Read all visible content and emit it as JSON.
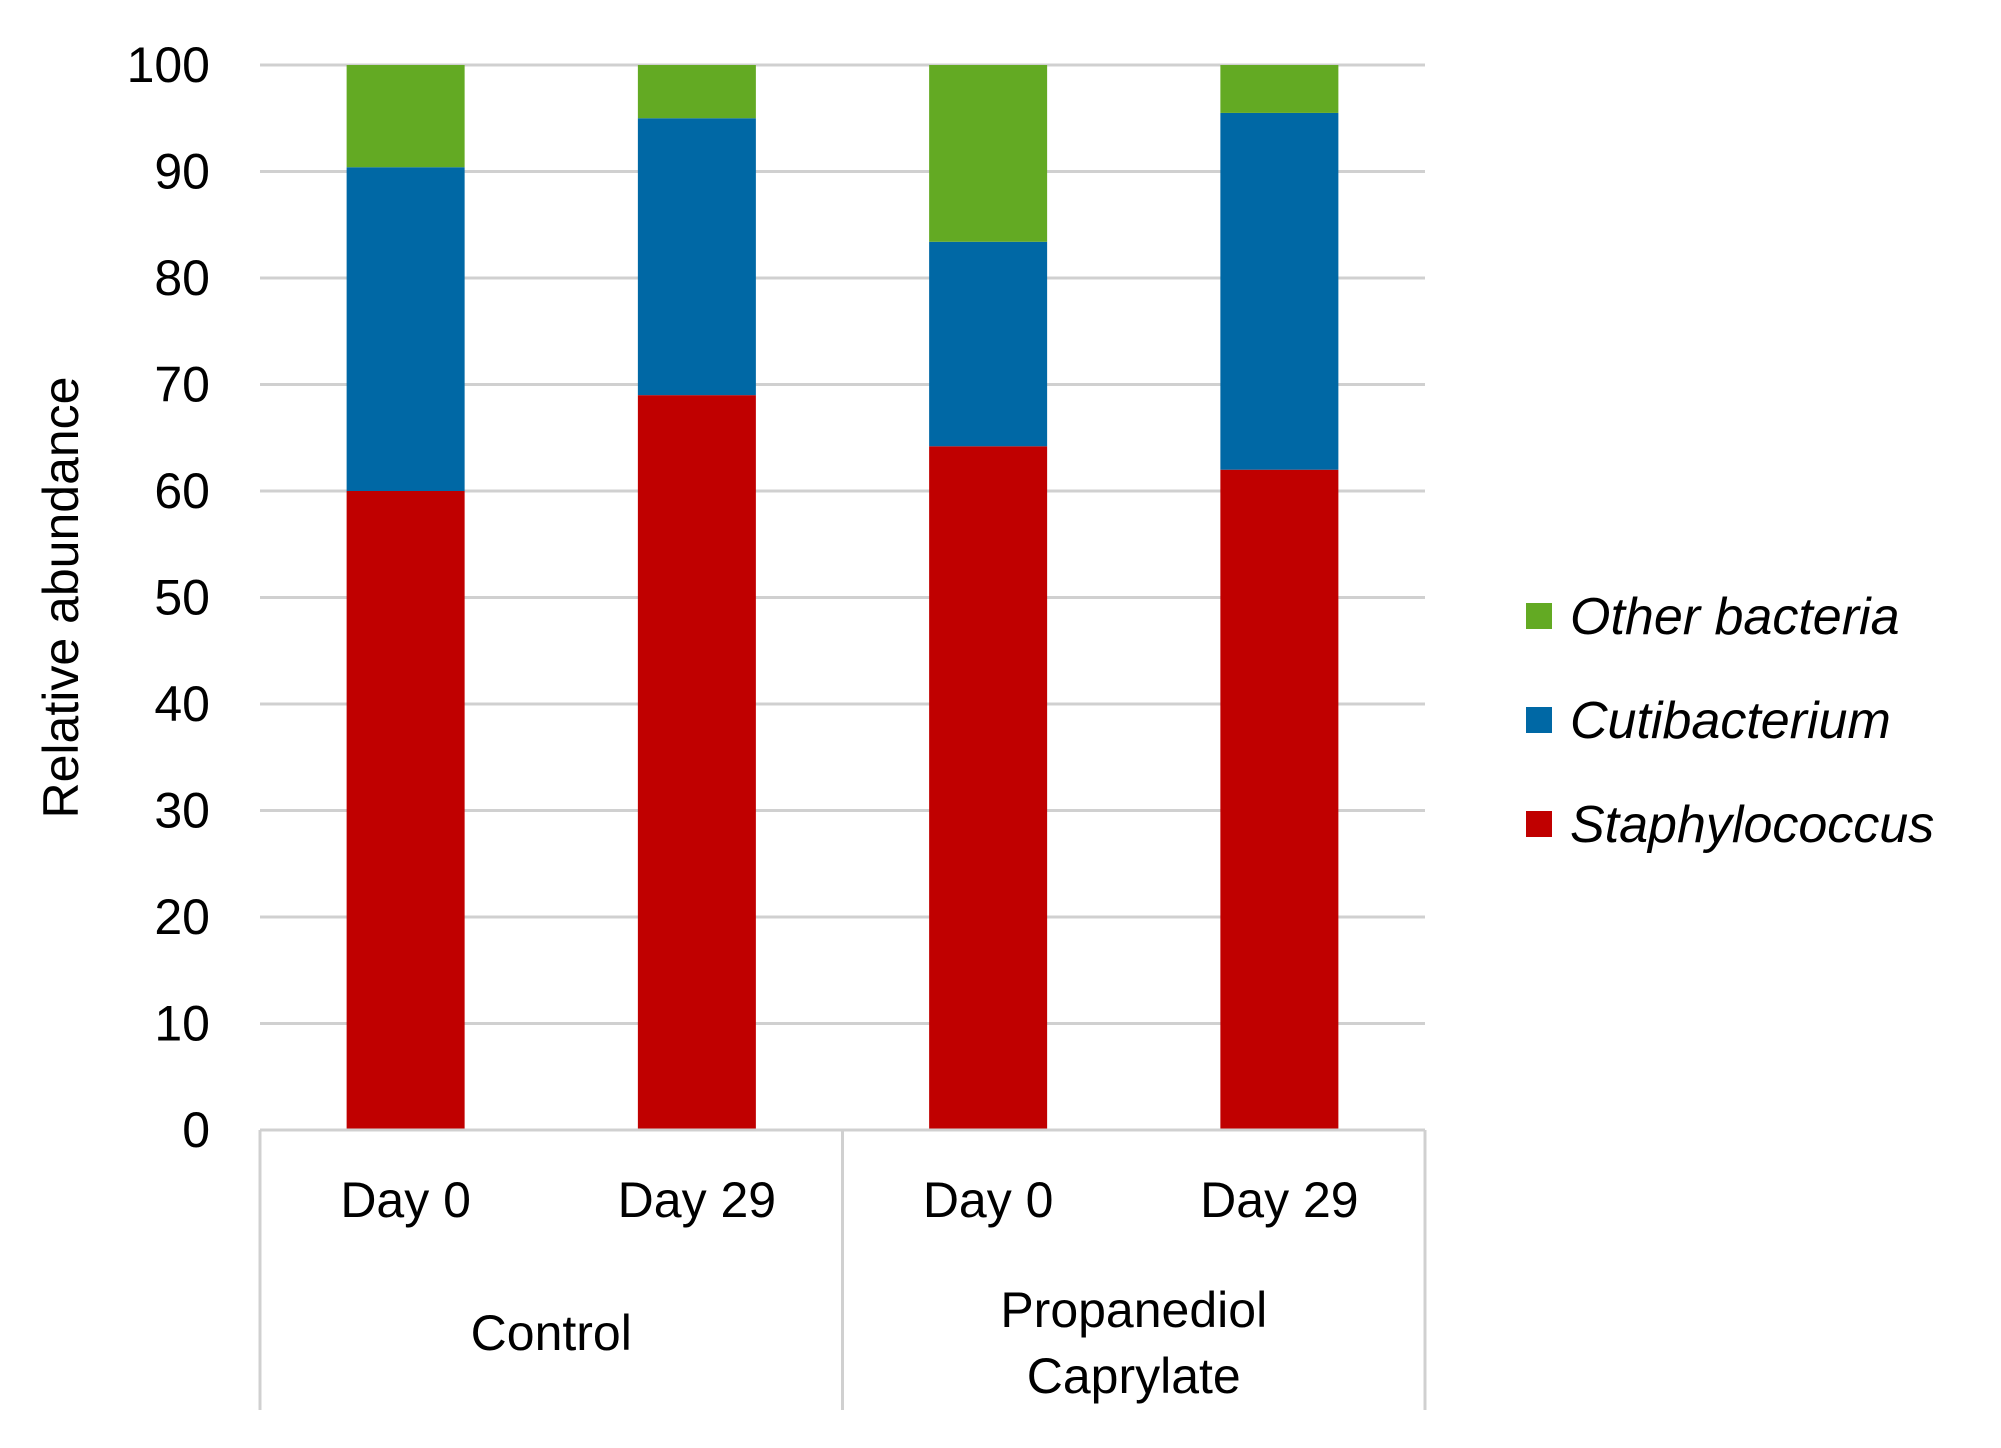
{
  "chart_data": {
    "type": "bar",
    "stacked": true,
    "title": "",
    "xlabel": "",
    "ylabel": "Relative abundance",
    "ylim": [
      0,
      100
    ],
    "yticks": [
      0,
      10,
      20,
      30,
      40,
      50,
      60,
      70,
      80,
      90,
      100
    ],
    "grid": true,
    "legend_position": "right",
    "categories": [
      "Day 0",
      "Day 29",
      "Day 0",
      "Day 29"
    ],
    "groups": [
      {
        "label_lines": [
          "Control"
        ],
        "categories": [
          0,
          1
        ]
      },
      {
        "label_lines": [
          "Propanediol",
          "Caprylate"
        ],
        "categories": [
          2,
          3
        ]
      }
    ],
    "series": [
      {
        "name": "Staphylococcus",
        "color": "#C00000",
        "values": [
          60,
          69,
          64.2,
          62
        ]
      },
      {
        "name": "Cutibacterium",
        "color": "#0068A5",
        "values": [
          30.4,
          26,
          19.2,
          33.5
        ]
      },
      {
        "name": "Other bacteria",
        "color": "#63AA23",
        "values": [
          9.6,
          5,
          16.6,
          4.5
        ]
      }
    ],
    "legend_order": [
      "Other bacteria",
      "Cutibacterium",
      "Staphylococcus"
    ]
  }
}
